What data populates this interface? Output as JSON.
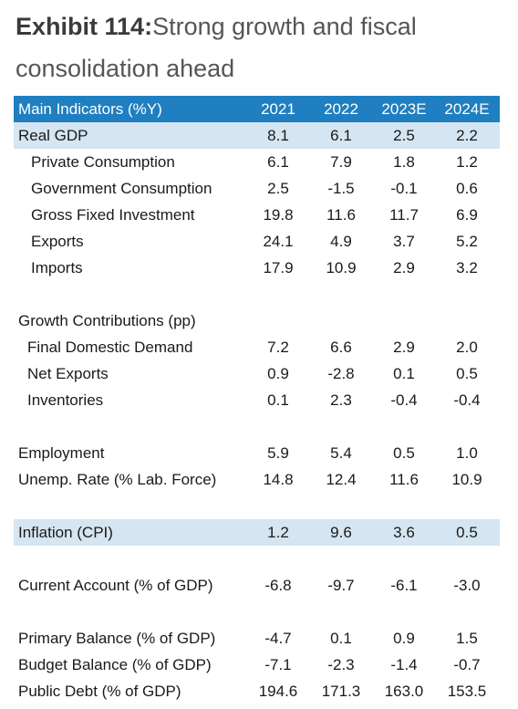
{
  "title": {
    "exhibit": "Exhibit 114:",
    "text": "Strong growth and fiscal consolidation ahead"
  },
  "header": {
    "label": "Main Indicators (%Y)",
    "years": [
      "2021",
      "2022",
      "2023E",
      "2024E"
    ]
  },
  "rows": [
    {
      "label": "Real GDP",
      "values": [
        "8.1",
        "6.1",
        "2.5",
        "2.2"
      ]
    },
    {
      "label": "Private Consumption",
      "values": [
        "6.1",
        "7.9",
        "1.8",
        "1.2"
      ]
    },
    {
      "label": "Government Consumption",
      "values": [
        "2.5",
        "-1.5",
        "-0.1",
        "0.6"
      ]
    },
    {
      "label": "Gross Fixed Investment",
      "values": [
        "19.8",
        "11.6",
        "11.7",
        "6.9"
      ]
    },
    {
      "label": "Exports",
      "values": [
        "24.1",
        "4.9",
        "3.7",
        "5.2"
      ]
    },
    {
      "label": "Imports",
      "values": [
        "17.9",
        "10.9",
        "2.9",
        "3.2"
      ]
    },
    {
      "label": "Growth Contributions (pp)",
      "values": [
        "",
        "",
        "",
        ""
      ]
    },
    {
      "label": "Final Domestic Demand",
      "values": [
        "7.2",
        "6.6",
        "2.9",
        "2.0"
      ]
    },
    {
      "label": "Net Exports",
      "values": [
        "0.9",
        "-2.8",
        "0.1",
        "0.5"
      ]
    },
    {
      "label": "Inventories",
      "values": [
        "0.1",
        "2.3",
        "-0.4",
        "-0.4"
      ]
    },
    {
      "label": "Employment",
      "values": [
        "5.9",
        "5.4",
        "0.5",
        "1.0"
      ]
    },
    {
      "label": "Unemp. Rate (% Lab. Force)",
      "values": [
        "14.8",
        "12.4",
        "11.6",
        "10.9"
      ]
    },
    {
      "label": "Inflation (CPI)",
      "values": [
        "1.2",
        "9.6",
        "3.6",
        "0.5"
      ]
    },
    {
      "label": "Current Account (% of GDP)",
      "values": [
        "-6.8",
        "-9.7",
        "-6.1",
        "-3.0"
      ]
    },
    {
      "label": "Primary Balance (% of GDP)",
      "values": [
        "-4.7",
        "0.1",
        "0.9",
        "1.5"
      ]
    },
    {
      "label": "Budget Balance (% of GDP)",
      "values": [
        "-7.1",
        "-2.3",
        "-1.4",
        "-0.7"
      ]
    },
    {
      "label": "Public Debt (% of GDP)",
      "values": [
        "194.6",
        "171.3",
        "163.0",
        "153.5"
      ]
    }
  ]
}
